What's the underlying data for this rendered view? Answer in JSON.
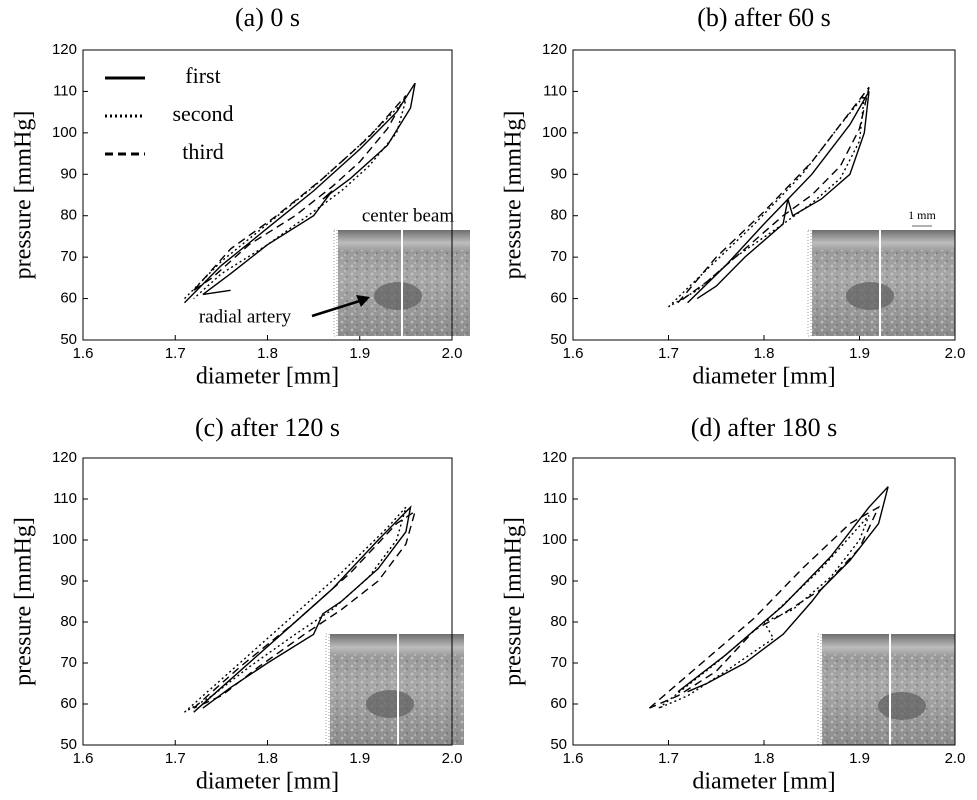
{
  "chart_data": [
    {
      "type": "line",
      "title": "(a) 0 s",
      "xlabel": "diameter [mm]",
      "ylabel": "pressure [mmHg]",
      "xlim": [
        1.6,
        2.0
      ],
      "xticks": [
        1.6,
        1.7,
        1.8,
        1.9,
        {
          "value": 2.0,
          "label": "2.0"
        }
      ],
      "ylim": [
        50,
        120
      ],
      "yticks": [
        50,
        60,
        70,
        80,
        90,
        100,
        110,
        120
      ],
      "legend": "upper left",
      "annotations": [
        "center beam",
        "radial artery"
      ],
      "series": [
        {
          "name": "first",
          "color": "#000000",
          "dash": "solid",
          "x": [
            1.71,
            1.75,
            1.8,
            1.85,
            1.9,
            1.94,
            1.96,
            1.955,
            1.93,
            1.89,
            1.86,
            1.87,
            1.85,
            1.8,
            1.76,
            1.73,
            1.76
          ],
          "values": [
            59,
            68,
            77,
            86,
            96,
            105,
            112,
            106,
            97,
            89,
            84,
            86,
            80,
            73,
            66,
            61,
            62
          ]
        },
        {
          "name": "second",
          "color": "#000000",
          "dash": "dotted",
          "x": [
            1.71,
            1.75,
            1.8,
            1.85,
            1.9,
            1.95,
            1.94,
            1.91,
            1.88,
            1.85,
            1.8,
            1.75,
            1.72
          ],
          "values": [
            60,
            69,
            78,
            87,
            97,
            108,
            100,
            92,
            86,
            81,
            73,
            66,
            60
          ]
        },
        {
          "name": "third",
          "color": "#000000",
          "dash": "dashed",
          "x": [
            1.72,
            1.76,
            1.81,
            1.86,
            1.91,
            1.95,
            1.93,
            1.9,
            1.87,
            1.83,
            1.78,
            1.74,
            1.72
          ],
          "values": [
            62,
            72,
            80,
            89,
            99,
            109,
            101,
            93,
            87,
            80,
            73,
            65,
            62
          ]
        }
      ]
    },
    {
      "type": "line",
      "title": "(b) after 60 s",
      "xlabel": "diameter [mm]",
      "ylabel": "pressure [mmHg]",
      "xlim": [
        1.6,
        2.0
      ],
      "xticks": [
        1.6,
        1.7,
        1.8,
        1.9,
        {
          "value": 2.0,
          "label": "2.0"
        }
      ],
      "ylim": [
        50,
        120
      ],
      "yticks": [
        50,
        60,
        70,
        80,
        90,
        100,
        110,
        120
      ],
      "annotations": [
        "1 mm"
      ],
      "series": [
        {
          "color": "#000000",
          "dash": "solid",
          "x": [
            1.72,
            1.76,
            1.8,
            1.85,
            1.89,
            1.91,
            1.905,
            1.89,
            1.86,
            1.83,
            1.825,
            1.82,
            1.78,
            1.75,
            1.73
          ],
          "values": [
            59,
            68,
            78,
            90,
            102,
            110,
            100,
            90,
            84,
            80,
            84,
            78,
            70,
            63,
            60
          ]
        },
        {
          "color": "#000000",
          "dash": "dotted",
          "x": [
            1.7,
            1.74,
            1.79,
            1.84,
            1.88,
            1.905,
            1.9,
            1.88,
            1.85,
            1.82,
            1.77,
            1.73,
            1.7
          ],
          "values": [
            58,
            67,
            78,
            90,
            102,
            109,
            98,
            89,
            83,
            78,
            70,
            62,
            58
          ]
        },
        {
          "color": "#000000",
          "dash": "dashed",
          "x": [
            1.71,
            1.75,
            1.8,
            1.85,
            1.89,
            1.91,
            1.9,
            1.88,
            1.85,
            1.82,
            1.78,
            1.74,
            1.71
          ],
          "values": [
            59,
            70,
            81,
            93,
            105,
            111,
            101,
            92,
            85,
            80,
            72,
            64,
            59
          ]
        }
      ]
    },
    {
      "type": "line",
      "title": "(c) after 120 s",
      "xlabel": "diameter [mm]",
      "ylabel": "pressure [mmHg]",
      "xlim": [
        1.6,
        2.0
      ],
      "xticks": [
        1.6,
        1.7,
        1.8,
        1.9,
        {
          "value": 2.0,
          "label": "2.0"
        }
      ],
      "ylim": [
        50,
        120
      ],
      "yticks": [
        50,
        60,
        70,
        80,
        90,
        100,
        110,
        120
      ],
      "series": [
        {
          "color": "#000000",
          "dash": "solid",
          "x": [
            1.72,
            1.77,
            1.82,
            1.87,
            1.92,
            1.955,
            1.95,
            1.92,
            1.88,
            1.86,
            1.85,
            1.8,
            1.76,
            1.73
          ],
          "values": [
            58,
            68,
            78,
            88,
            100,
            108,
            102,
            93,
            85,
            82,
            77,
            70,
            64,
            59
          ]
        },
        {
          "color": "#000000",
          "dash": "dotted",
          "x": [
            1.71,
            1.76,
            1.82,
            1.88,
            1.93,
            1.95,
            1.94,
            1.91,
            1.87,
            1.83,
            1.78,
            1.74,
            1.71
          ],
          "values": [
            58,
            68,
            80,
            92,
            103,
            108,
            100,
            91,
            83,
            77,
            69,
            62,
            58
          ]
        },
        {
          "color": "#000000",
          "dash": "dashed",
          "x": [
            1.72,
            1.77,
            1.83,
            1.89,
            1.94,
            1.96,
            1.95,
            1.92,
            1.88,
            1.84,
            1.79,
            1.75,
            1.72
          ],
          "values": [
            59,
            69,
            80,
            92,
            104,
            107,
            99,
            90,
            83,
            77,
            69,
            62,
            59
          ]
        }
      ]
    },
    {
      "type": "line",
      "title": "(d) after 180 s",
      "xlabel": "diameter [mm]",
      "ylabel": "pressure [mmHg]",
      "xlim": [
        1.6,
        2.0
      ],
      "xticks": [
        1.6,
        1.7,
        1.8,
        1.9,
        {
          "value": 2.0,
          "label": "2.0"
        }
      ],
      "ylim": [
        50,
        120
      ],
      "yticks": [
        50,
        60,
        70,
        80,
        90,
        100,
        110,
        120
      ],
      "series": [
        {
          "color": "#000000",
          "dash": "solid",
          "x": [
            1.71,
            1.76,
            1.82,
            1.87,
            1.91,
            1.93,
            1.92,
            1.89,
            1.86,
            1.85,
            1.82,
            1.78,
            1.74,
            1.72
          ],
          "values": [
            63,
            72,
            84,
            96,
            108,
            113,
            104,
            95,
            88,
            85,
            77,
            70,
            65,
            63
          ]
        },
        {
          "color": "#000000",
          "dash": "dotted",
          "x": [
            1.69,
            1.75,
            1.81,
            1.86,
            1.91,
            1.9,
            1.87,
            1.83,
            1.8,
            1.81,
            1.76,
            1.72,
            1.69
          ],
          "values": [
            59,
            70,
            82,
            93,
            106,
            100,
            91,
            83,
            80,
            76,
            68,
            62,
            59
          ]
        },
        {
          "color": "#000000",
          "dash": "dashed",
          "x": [
            1.68,
            1.73,
            1.79,
            1.84,
            1.89,
            1.92,
            1.9,
            1.86,
            1.82,
            1.79,
            1.75,
            1.71,
            1.68
          ],
          "values": [
            59,
            69,
            81,
            93,
            104,
            108,
            98,
            88,
            82,
            78,
            68,
            62,
            59
          ]
        }
      ]
    }
  ]
}
